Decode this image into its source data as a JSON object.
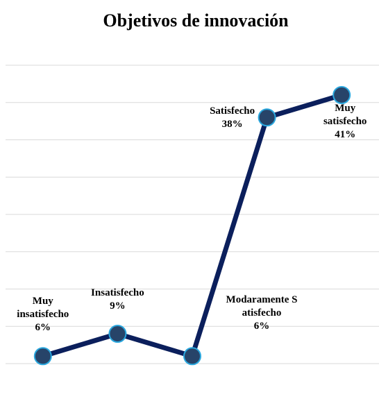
{
  "chart_data": {
    "type": "line",
    "title": "Objetivos de innovación",
    "categories": [
      "Muy insatisfecho",
      "Insatisfecho",
      "Modaramente Satisfecho",
      "Satisfecho",
      "Muy satisfecho"
    ],
    "series": [
      {
        "name": "Objetivos de innovación",
        "color": "#0b1f5c",
        "values": [
          6,
          9,
          6,
          38,
          41
        ],
        "value_labels": [
          "6%",
          "9%",
          "6%",
          "38%",
          "41%"
        ]
      }
    ],
    "ylim": [
      5,
      45
    ],
    "yticks": [
      5,
      10,
      15,
      20,
      25,
      30,
      35,
      40,
      45
    ],
    "grid": true
  }
}
